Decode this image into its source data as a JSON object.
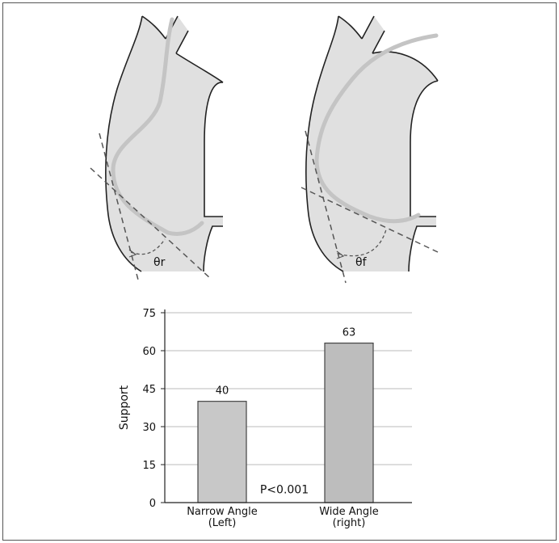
{
  "diagram": {
    "left_angle_label": "θr",
    "right_angle_label": "θf"
  },
  "chart_data": {
    "type": "bar",
    "categories": [
      "Narrow Angle\n(Left)",
      "Wide Angle\n(right)"
    ],
    "values": [
      40,
      63
    ],
    "data_labels": [
      "40",
      "63"
    ],
    "title": "",
    "xlabel": "",
    "ylabel": "Support",
    "ylim": [
      0,
      75
    ],
    "yticks": [
      0,
      15,
      30,
      45,
      60,
      75
    ],
    "grid": true,
    "annotations": [
      "P<0.001"
    ],
    "colors": {
      "left_bar": "#c8c8c8",
      "right_bar": "#bdbdbd",
      "bar_border": "#444444",
      "grid": "#bbbbbb",
      "vessel_fill": "#e0e0e0",
      "vessel_stroke": "#222222",
      "wire": "#c4c4c4",
      "dashed": "#555555"
    }
  }
}
